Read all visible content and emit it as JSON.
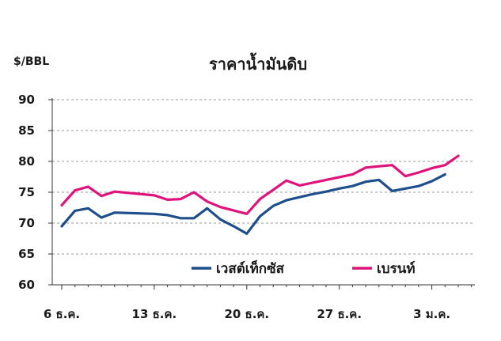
{
  "chart_data": {
    "type": "line",
    "title": "ราคาน้ำมันดิบ",
    "ylabel": "$/BBL",
    "xlabel": "",
    "ylim": [
      60,
      90
    ],
    "yticks": [
      60,
      65,
      70,
      75,
      80,
      85,
      90
    ],
    "x_tick_labels": [
      "6 ธ.ค.",
      "13 ธ.ค.",
      "20 ธ.ค.",
      "27 ธ.ค.",
      "3 ม.ค."
    ],
    "grid": true,
    "legend_position": "bottom-right",
    "series": [
      {
        "name": "เวสต์เท็กซัส",
        "color": "#1F4E8C",
        "values": [
          69.5,
          72.0,
          72.4,
          70.9,
          71.7,
          71.5,
          71.3,
          70.8,
          70.8,
          72.4,
          70.6,
          69.5,
          68.3,
          71.1,
          72.8,
          73.7,
          74.2,
          74.7,
          75.1,
          75.6,
          76.0,
          76.7,
          77.0,
          75.2,
          75.6,
          76.0,
          76.8,
          77.9
        ],
        "points_x": [
          0,
          1,
          2,
          3,
          4,
          7,
          8,
          9,
          10,
          11,
          12,
          13,
          14,
          15,
          16,
          17,
          18,
          19,
          20,
          21,
          22,
          23,
          24,
          25,
          26,
          27,
          28,
          29
        ]
      },
      {
        "name": "เบรนท์",
        "color": "#E0127C",
        "values": [
          72.9,
          75.3,
          75.9,
          74.4,
          75.1,
          74.5,
          73.8,
          73.9,
          75.0,
          73.5,
          72.6,
          71.5,
          73.9,
          75.4,
          76.9,
          76.1,
          77.0,
          77.9,
          79.0,
          79.2,
          79.4,
          77.6,
          78.2,
          78.9,
          79.4,
          80.9
        ],
        "points_x": [
          0,
          1,
          2,
          3,
          4,
          7,
          8,
          9,
          10,
          11,
          12,
          14,
          15,
          16,
          17,
          18,
          20,
          22,
          23,
          24,
          25,
          26,
          27,
          28,
          29,
          30
        ]
      }
    ]
  }
}
